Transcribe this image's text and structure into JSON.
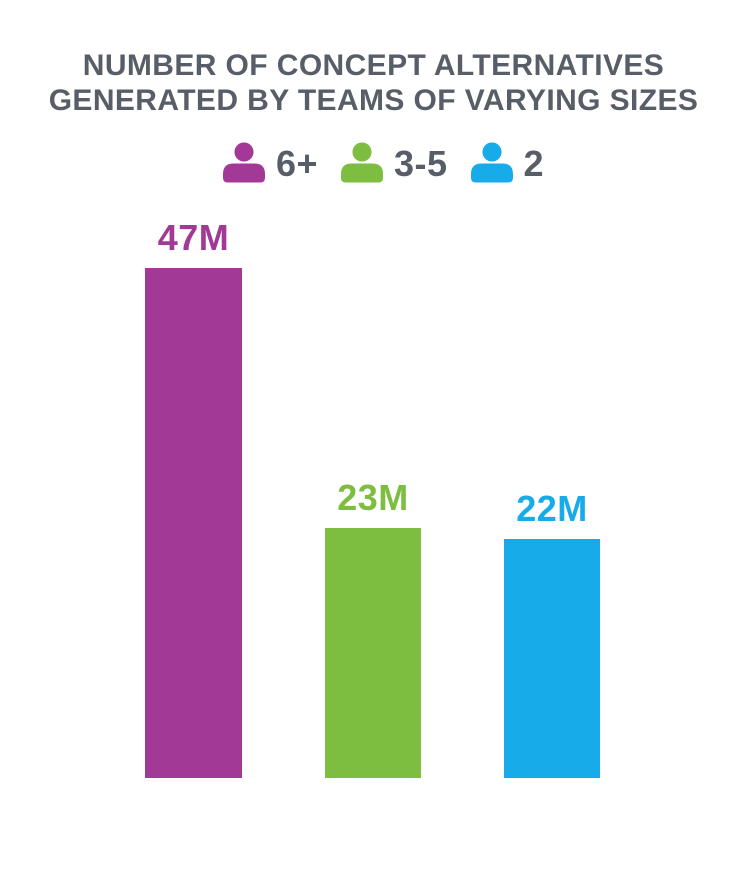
{
  "title": {
    "line1": "NUMBER OF CONCEPT ALTERNATIVES",
    "line2": "GENERATED BY TEAMS OF VARYING SIZES"
  },
  "legend": {
    "items": [
      {
        "icon": "person-icon",
        "label": "6+",
        "color": "#A23997"
      },
      {
        "icon": "person-icon",
        "label": "3-5",
        "color": "#7DBE41"
      },
      {
        "icon": "person-icon",
        "label": "2",
        "color": "#18ABE9"
      }
    ]
  },
  "chart_data": {
    "type": "bar",
    "title": "NUMBER OF CONCEPT ALTERNATIVES GENERATED BY TEAMS OF VARYING SIZES",
    "categories": [
      "6+",
      "3-5",
      "2"
    ],
    "values": [
      47,
      23,
      22
    ],
    "unit": "M",
    "value_labels": [
      "47M",
      "23M",
      "22M"
    ],
    "colors": [
      "#A23997",
      "#7DBE41",
      "#18ABE9"
    ],
    "ylim": [
      0,
      47
    ],
    "xlabel": "",
    "ylabel": "",
    "grid": false,
    "axes_visible": false,
    "legend_position": "top",
    "legend_entries": [
      "6+",
      "3-5",
      "2"
    ]
  },
  "colors": {
    "title_text": "#575E68",
    "background": "#FFFFFF"
  }
}
